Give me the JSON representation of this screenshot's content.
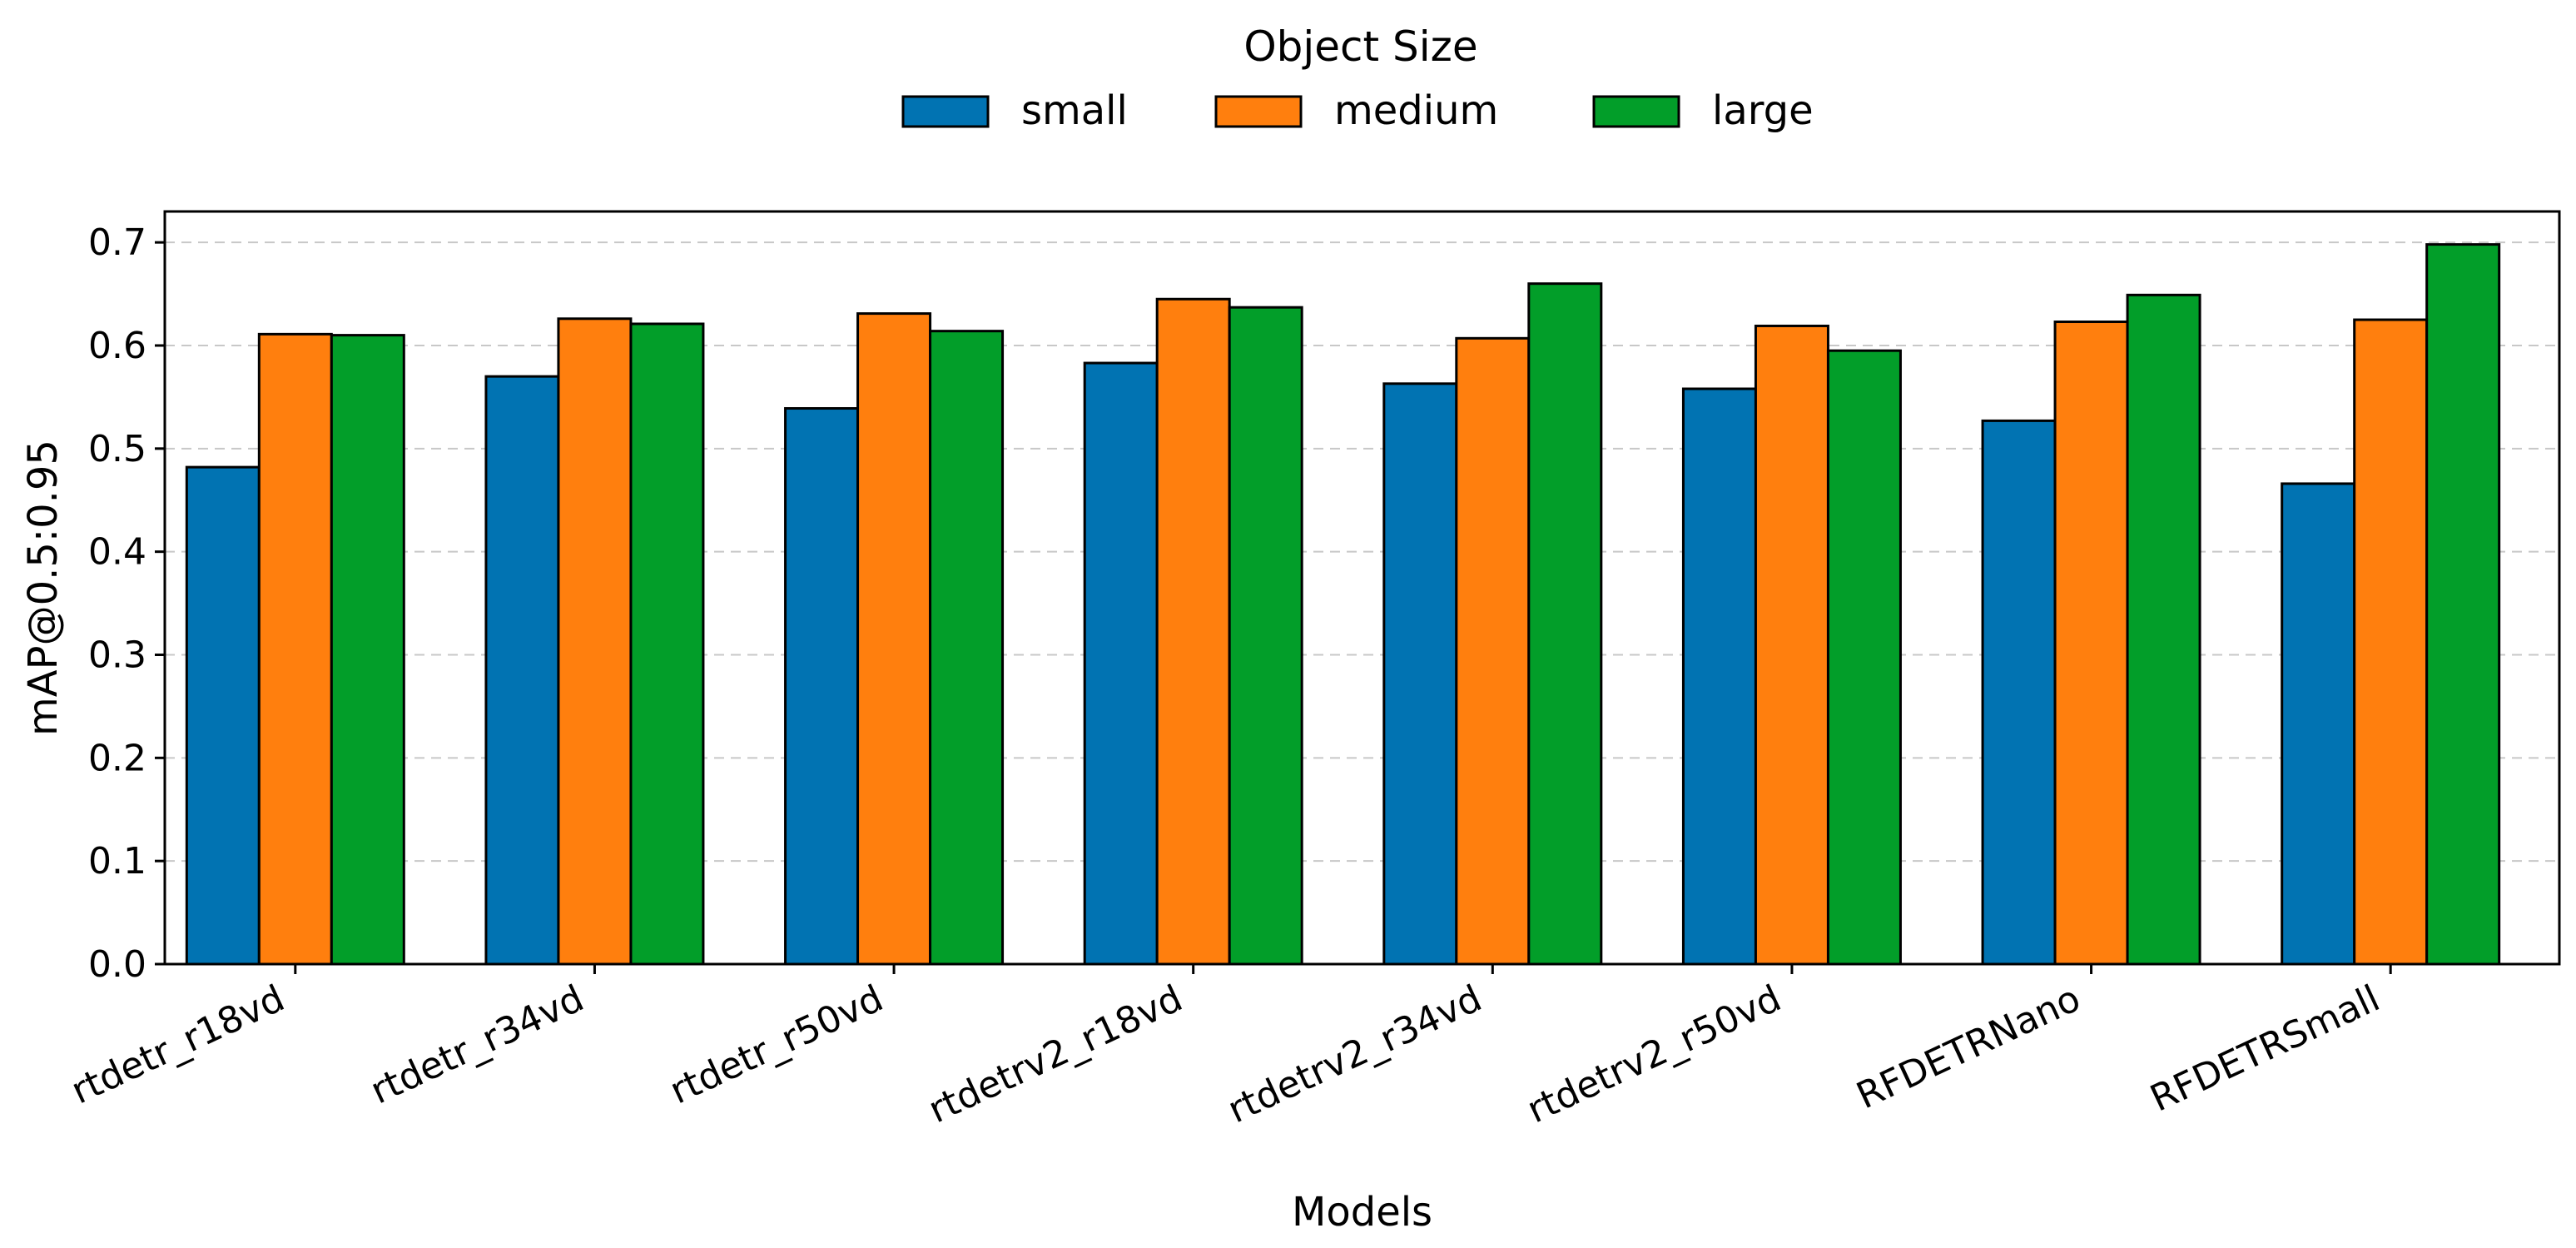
{
  "chart_data": {
    "type": "bar",
    "title": "",
    "xlabel": "Models",
    "ylabel": "mAP@0.5:0.95",
    "ylim": [
      0,
      0.73
    ],
    "yticks": [
      "0.0",
      "0.1",
      "0.2",
      "0.3",
      "0.4",
      "0.5",
      "0.6",
      "0.7"
    ],
    "grid": "horizontal dashed",
    "legend": {
      "title": "Object Size",
      "placement": "top-center, outside plot"
    },
    "categories": [
      "rtdetr_r18vd",
      "rtdetr_r34vd",
      "rtdetr_r50vd",
      "rtdetrv2_r18vd",
      "rtdetrv2_r34vd",
      "rtdetrv2_r50vd",
      "RFDETRNano",
      "RFDETRSmall"
    ],
    "series": [
      {
        "name": "small",
        "color": "#0173b2",
        "values": [
          0.482,
          0.57,
          0.539,
          0.583,
          0.563,
          0.558,
          0.527,
          0.466
        ]
      },
      {
        "name": "medium",
        "color": "#ff7f0e",
        "values": [
          0.611,
          0.626,
          0.631,
          0.645,
          0.607,
          0.619,
          0.623,
          0.625
        ]
      },
      {
        "name": "large",
        "color": "#029e29",
        "values": [
          0.61,
          0.621,
          0.614,
          0.637,
          0.66,
          0.595,
          0.649,
          0.698
        ]
      }
    ]
  }
}
